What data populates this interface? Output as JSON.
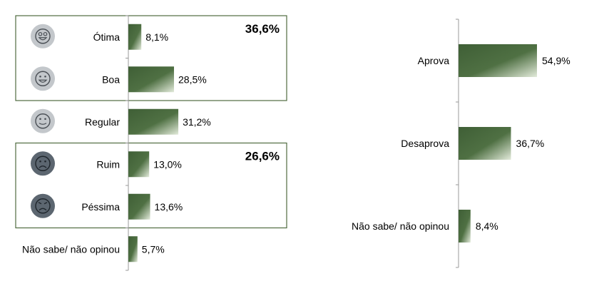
{
  "colors": {
    "bar_dark": "#3f5f36",
    "bar_light": "#dfe8d6",
    "group_border": "#4f6b3f",
    "axis": "#999999",
    "face_light": "#c3c7cb",
    "face_dark": "#5c6670",
    "text": "#000000"
  },
  "chart_data": [
    {
      "type": "bar",
      "orientation": "horizontal",
      "categories": [
        "Ótima",
        "Boa",
        "Regular",
        "Ruim",
        "Péssima",
        "Não sabe/ não opinou"
      ],
      "values": [
        8.1,
        28.5,
        31.2,
        13.0,
        13.6,
        5.7
      ],
      "value_labels": [
        "8,1%",
        "28,5%",
        "31,2%",
        "13,0%",
        "13,6%",
        "5,7%"
      ],
      "icons": [
        "very-happy-face-icon",
        "happy-face-icon",
        "neutral-face-icon",
        "sad-face-icon",
        "very-sad-face-icon",
        ""
      ],
      "groups": [
        {
          "members": [
            "Ótima",
            "Boa"
          ],
          "total_label": "36,6%"
        },
        {
          "members": [
            "Ruim",
            "Péssima"
          ],
          "total_label": "26,6%"
        }
      ],
      "xlim": [
        0,
        60
      ]
    },
    {
      "type": "bar",
      "orientation": "horizontal",
      "categories": [
        "Aprova",
        "Desaprova",
        "Não sabe/ não opinou"
      ],
      "values": [
        54.9,
        36.7,
        8.4
      ],
      "value_labels": [
        "54,9%",
        "36,7%",
        "8,4%"
      ],
      "xlim": [
        0,
        60
      ]
    }
  ]
}
